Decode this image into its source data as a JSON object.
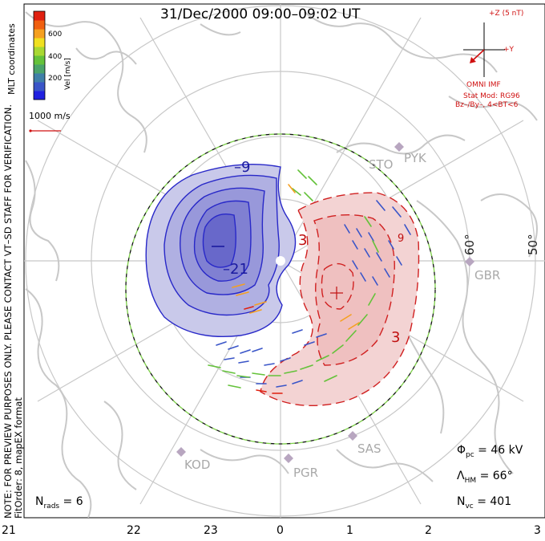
{
  "title": "31/Dec/2000 09:00–09:02 UT",
  "notes": {
    "left_line1": "NOTE: FOR PREVIEW PURPOSES ONLY. PLEASE CONTACT VT–SD STAFF FOR VERIFICATION.",
    "left_line2": "FitOrder: 8, mapEX format",
    "coordinates": "MLT coordinates"
  },
  "colorbar": {
    "label": "Vel [m/s]",
    "ticks": [
      "600",
      "400",
      "200"
    ],
    "colors": [
      "#2020e0",
      "#3a55c8",
      "#3f7fa8",
      "#4aa36a",
      "#64c23a",
      "#a8d832",
      "#f0e020",
      "#f5a020",
      "#f06010",
      "#e02010"
    ]
  },
  "velocity_scale": "1000 m/s",
  "imf": {
    "bz_label": "+Z (5 nT)",
    "by_label": "+Y",
    "source": "OMNI IMF",
    "model_line1": "Stat Mod: RG96",
    "model_line2": "Bz–/By–, 4<BT<6"
  },
  "stats": {
    "phi_pc": {
      "symbol": "Φ",
      "sub": "pc",
      "value": " = 46 kV"
    },
    "lambda_hm": {
      "symbol": "Λ",
      "sub": "HM",
      "value": " = 66°"
    },
    "n_vc": {
      "symbol": "N",
      "sub": "vc",
      "value": " = 401"
    },
    "n_rads": {
      "symbol": "N",
      "sub": "rads",
      "value": " = 6"
    }
  },
  "mlt_ticks": [
    "21",
    "22",
    "23",
    "0",
    "1",
    "2",
    "3"
  ],
  "latitude_labels": [
    "60°",
    "50°"
  ],
  "stations": [
    "PYK",
    "STO",
    "GBR",
    "SAS",
    "PGR",
    "KOD"
  ],
  "contour_labels": {
    "neg_outer": "–9",
    "neg_inner": "–21",
    "pos_outer": "3",
    "pos_right": "3",
    "pos_side": "9"
  },
  "map_data": {
    "phi_pc_kv": 46,
    "lambda_hm_deg": 66,
    "n_vc": 401,
    "n_rads": 6,
    "colors": {
      "negative_cell": "#2828c8",
      "positive_cell": "#d02020",
      "hm_boundary": "#7ed04a",
      "coastline": "#c8c8c8",
      "grid": "#c8c8c8"
    }
  }
}
